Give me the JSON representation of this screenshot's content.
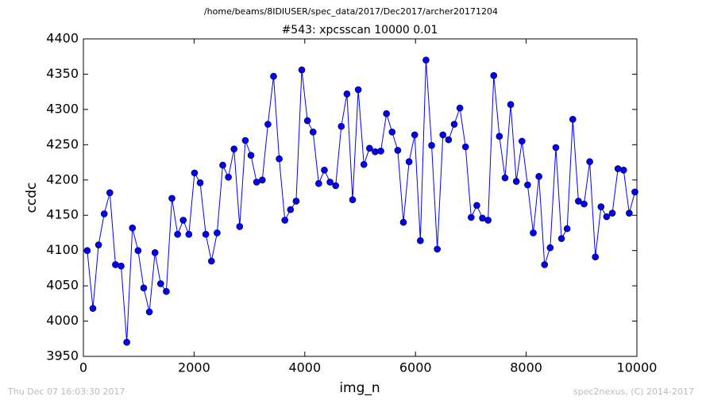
{
  "chart_data": {
    "type": "line",
    "suptitle": "/home/beams/8IDIUSER/spec_data/2017/Dec2017/archer20171204",
    "title": "#543: xpcsscan 10000 0.01",
    "x_label": "img_n",
    "y_label": "ccdc",
    "footer_left": "Thu Dec 07 16:03:30 2017",
    "footer_right": "spec2nexus, (C) 2014-2017",
    "color": "#0000ff",
    "xlim": [
      0,
      10000
    ],
    "xticks": [
      0,
      2000,
      4000,
      6000,
      8000,
      10000
    ],
    "ylim": [
      3950,
      4400
    ],
    "yticks": [
      3950,
      4000,
      4050,
      4100,
      4150,
      4200,
      4250,
      4300,
      4350,
      4400
    ],
    "x": [
      70,
      172,
      274,
      376,
      478,
      580,
      682,
      784,
      886,
      988,
      1090,
      1192,
      1294,
      1396,
      1498,
      1600,
      1702,
      1804,
      1906,
      2008,
      2110,
      2212,
      2314,
      2416,
      2518,
      2620,
      2722,
      2824,
      2926,
      3028,
      3130,
      3232,
      3334,
      3436,
      3538,
      3640,
      3742,
      3844,
      3946,
      4048,
      4150,
      4252,
      4354,
      4456,
      4558,
      4660,
      4762,
      4864,
      4966,
      5068,
      5170,
      5272,
      5374,
      5476,
      5578,
      5680,
      5782,
      5884,
      5986,
      6088,
      6190,
      6292,
      6394,
      6496,
      6598,
      6700,
      6802,
      6904,
      7006,
      7108,
      7210,
      7312,
      7414,
      7516,
      7618,
      7720,
      7822,
      7924,
      8026,
      8128,
      8230,
      8332,
      8434,
      8536,
      8638,
      8740,
      8842,
      8944,
      9046,
      9148,
      9250,
      9352,
      9454,
      9556,
      9658,
      9760,
      9862,
      9964
    ],
    "values": [
      4100,
      4018,
      4108,
      4152,
      4182,
      4080,
      4078,
      3970,
      4132,
      4100,
      4047,
      4013,
      4097,
      4053,
      4042,
      4174,
      4123,
      4143,
      4123,
      4210,
      4196,
      4123,
      4085,
      4125,
      4221,
      4204,
      4244,
      4134,
      4256,
      4235,
      4197,
      4200,
      4279,
      4347,
      4230,
      4143,
      4158,
      4170,
      4356,
      4284,
      4268,
      4195,
      4214,
      4197,
      4192,
      4276,
      4322,
      4172,
      4328,
      4222,
      4245,
      4240,
      4241,
      4294,
      4268,
      4242,
      4140,
      4226,
      4264,
      4114,
      4370,
      4249,
      4102,
      4264,
      4257,
      4279,
      4302,
      4247,
      4147,
      4164,
      4146,
      4143,
      4348,
      4262,
      4203,
      4307,
      4198,
      4255,
      4193,
      4125,
      4205,
      4080,
      4104,
      4246,
      4117,
      4131,
      4286,
      4170,
      4166,
      4226,
      4091,
      4162,
      4148,
      4153,
      4216,
      4214,
      4153,
      4183
    ]
  }
}
